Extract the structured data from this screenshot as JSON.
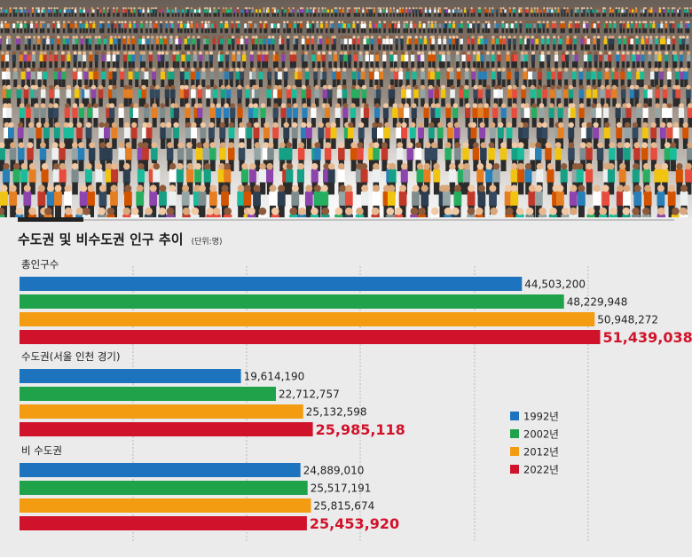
{
  "chart_data": {
    "type": "bar",
    "orientation": "horizontal",
    "title": "수도권 및 비수도권 인구 추이",
    "unit": "(단위:명)",
    "groups": [
      {
        "label": "총인구수",
        "values": [
          44503200,
          48229948,
          50948272,
          51439038
        ],
        "value_labels": [
          "44,503,200",
          "48,229,948",
          "50,948,272",
          "51,439,038"
        ]
      },
      {
        "label": "수도권(서울 인천 경기)",
        "values": [
          19614190,
          22712757,
          25132598,
          25985118
        ],
        "value_labels": [
          "19,614,190",
          "22,712,757",
          "25,132,598",
          "25,985,118"
        ]
      },
      {
        "label": "비 수도권",
        "values": [
          24889010,
          25517191,
          25815674,
          25453920
        ],
        "value_labels": [
          "24,889,010",
          "25,517,191",
          "25,815,674",
          "25,453,920"
        ]
      }
    ],
    "series": [
      {
        "name": "1992년",
        "color": "#1e73be"
      },
      {
        "name": "2002년",
        "color": "#1fa24a"
      },
      {
        "name": "2012년",
        "color": "#f39c12"
      },
      {
        "name": "2022년",
        "color": "#d0122a"
      }
    ],
    "highlight_series": "2022년",
    "xlim": [
      0,
      58000000
    ],
    "grid": true,
    "legend": "right"
  }
}
